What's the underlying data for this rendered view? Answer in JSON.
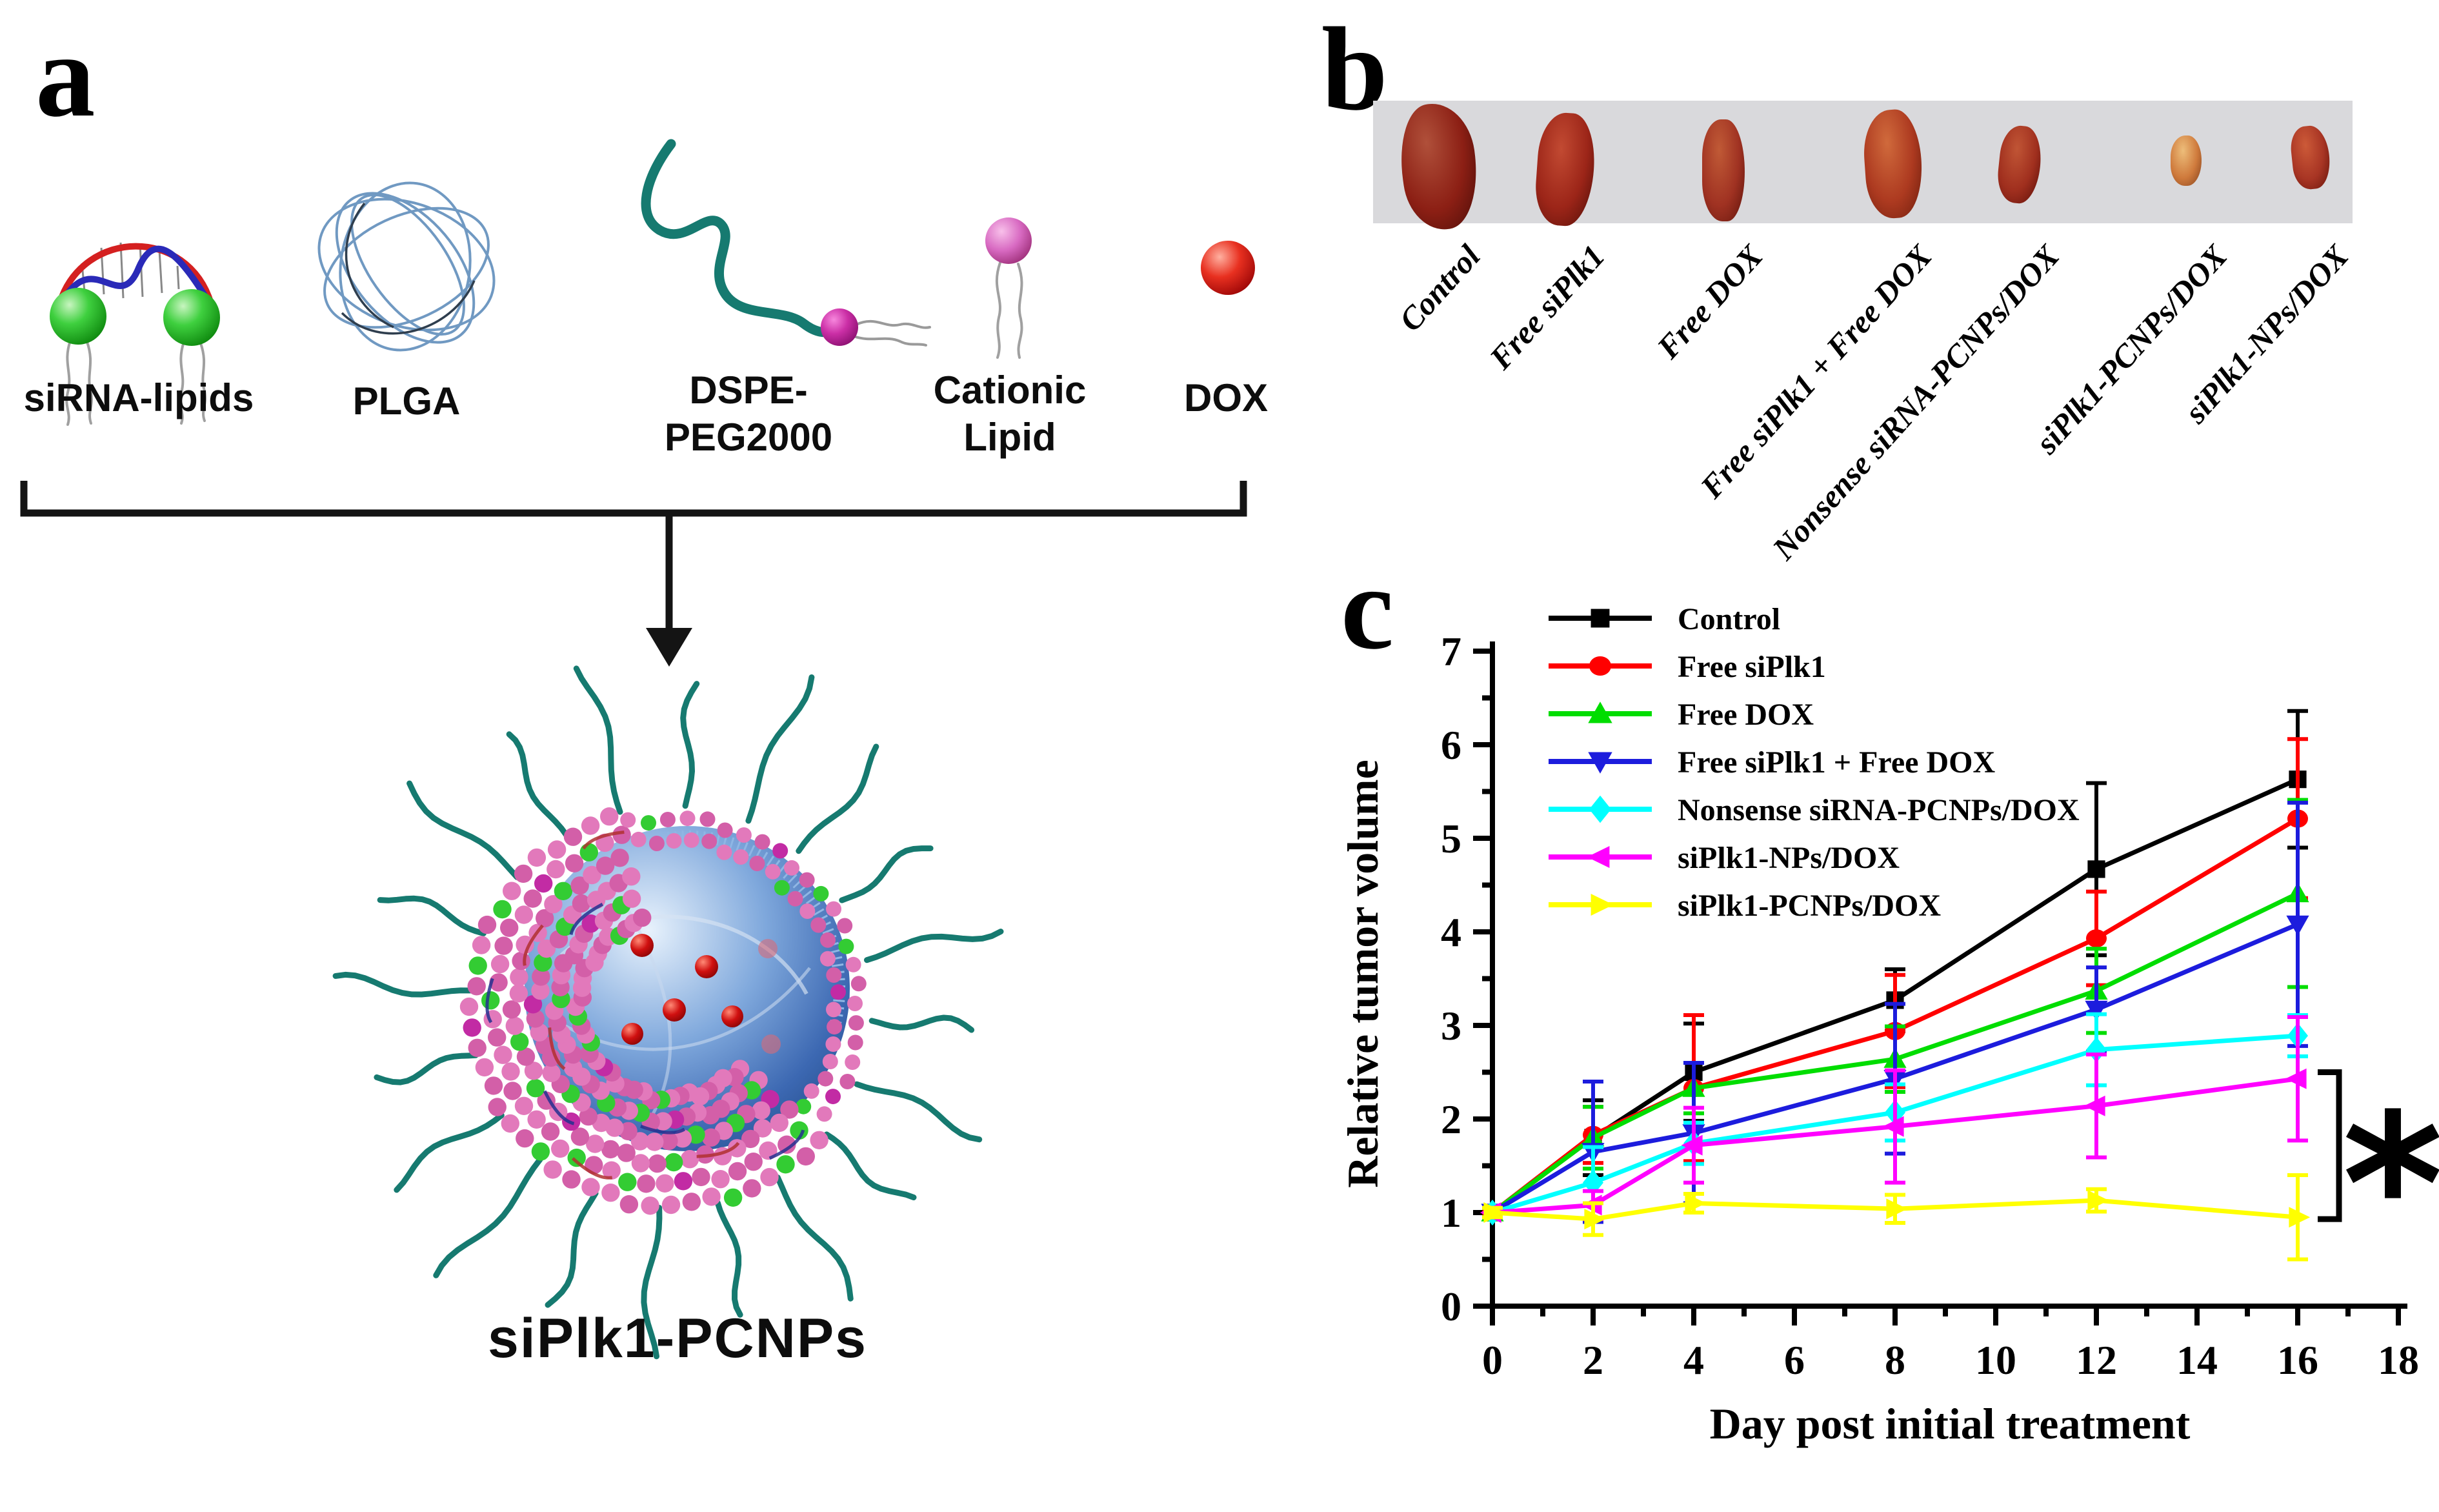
{
  "palette": {
    "background": "#ffffff",
    "panel_b_strip": "#d9d9dc",
    "peg_teal": "#167a70",
    "shell_pink": "#e279bb",
    "shell_pink_dark": "#d35fa8",
    "shell_magenta": "#c22ba4",
    "lipid_green": "#33cc33",
    "core_blue": "#3c68b2",
    "dox_red": "#d01010",
    "plga_blue": "#7099c2"
  },
  "panel_a": {
    "letter": "a",
    "components": [
      {
        "icon": "sirna-lipids-icon",
        "line1": "siRNA-lipids",
        "line2": ""
      },
      {
        "icon": "plga-icon",
        "line1": "PLGA",
        "line2": ""
      },
      {
        "icon": "dspe-peg2000-icon",
        "line1": "DSPE-",
        "line2": "PEG2000"
      },
      {
        "icon": "cationic-lipid-icon",
        "line1": "Cationic",
        "line2": "Lipid"
      },
      {
        "icon": "dox-icon",
        "line1": "DOX",
        "line2": ""
      }
    ],
    "product_label": "siPlk1-PCNPs"
  },
  "panel_b": {
    "letter": "b",
    "labels": [
      "Control",
      "Free siPlk1",
      "Free DOX",
      "Free siPlk1 + Free DOX",
      "Nonsense siRNA-PCNPs/DOX",
      "siPlk1-PCNPs/DOX",
      "siPlk1-NPs/DOX"
    ]
  },
  "panel_c": {
    "letter": "c",
    "significance_marker": "*"
  },
  "chart_data": {
    "type": "line",
    "title": "",
    "xlabel": "Day post initial treatment",
    "ylabel": "Relative tumor volume",
    "xlim": [
      0,
      18
    ],
    "ylim": [
      0,
      7
    ],
    "xticks": [
      0,
      2,
      4,
      6,
      8,
      10,
      12,
      14,
      16,
      18
    ],
    "yticks": [
      0,
      1,
      2,
      3,
      4,
      5,
      6,
      7
    ],
    "grid": false,
    "legend_position": "upper-left-inside",
    "x": [
      0,
      2,
      4,
      8,
      12,
      16
    ],
    "series": [
      {
        "name": "Control",
        "color": "#000000",
        "marker": "square",
        "values": [
          1.0,
          1.8,
          2.5,
          3.27,
          4.67,
          5.63
        ],
        "errors": [
          0.05,
          0.4,
          0.52,
          0.33,
          0.92,
          0.73
        ]
      },
      {
        "name": "Free siPlk1",
        "color": "#ff0000",
        "marker": "circle",
        "values": [
          1.0,
          1.83,
          2.33,
          2.94,
          3.93,
          5.21
        ],
        "errors": [
          0.05,
          0.3,
          0.78,
          0.6,
          0.5,
          0.85
        ]
      },
      {
        "name": "Free DOX",
        "color": "#00dd00",
        "marker": "triangle-up",
        "values": [
          1.0,
          1.8,
          2.33,
          2.64,
          3.37,
          4.41
        ],
        "errors": [
          0.05,
          0.33,
          0.27,
          0.35,
          0.45,
          1.0
        ]
      },
      {
        "name": "Free siPlk1 + Free DOX",
        "color": "#1c1cdd",
        "marker": "triangle-down",
        "values": [
          1.0,
          1.65,
          1.85,
          2.43,
          3.17,
          4.08
        ],
        "errors": [
          0.05,
          0.75,
          0.75,
          0.8,
          0.45,
          1.3
        ]
      },
      {
        "name": "Nonsense siRNA-PCNPs/DOX",
        "color": "#00ffff",
        "marker": "diamond",
        "values": [
          1.0,
          1.32,
          1.74,
          2.07,
          2.74,
          2.89
        ],
        "errors": [
          0.05,
          0.38,
          0.22,
          0.3,
          0.38,
          0.22
        ]
      },
      {
        "name": "siPlk1-NPs/DOX",
        "color": "#ff00ff",
        "marker": "triangle-left",
        "values": [
          1.0,
          1.08,
          1.72,
          1.92,
          2.14,
          2.43
        ],
        "errors": [
          0.05,
          0.15,
          0.4,
          0.6,
          0.55,
          0.66
        ]
      },
      {
        "name": "siPlk1-PCNPs/DOX",
        "color": "#ffff00",
        "marker": "triangle-right",
        "values": [
          1.0,
          0.93,
          1.1,
          1.04,
          1.13,
          0.95
        ],
        "errors": [
          0.05,
          0.17,
          0.1,
          0.15,
          0.12,
          0.45
        ]
      }
    ],
    "annotation": {
      "text": "*",
      "y_top": 2.5,
      "y_bottom": 0.93
    }
  }
}
